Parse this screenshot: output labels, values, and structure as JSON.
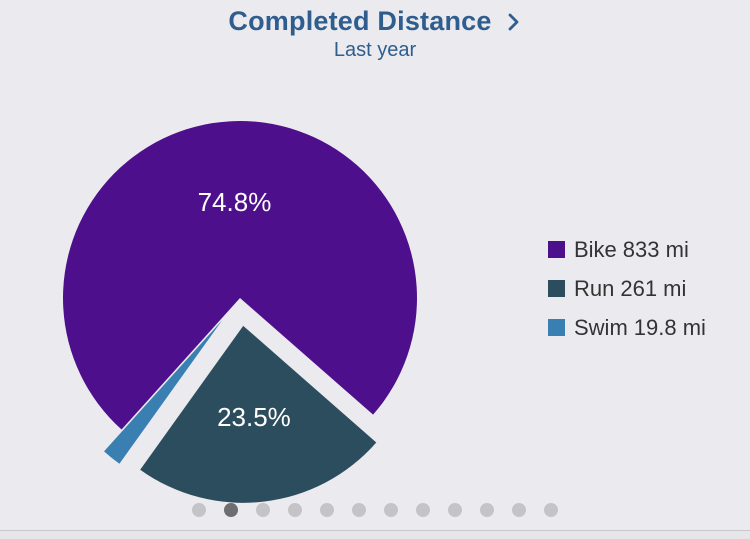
{
  "header": {
    "title": "Completed Distance",
    "subtitle": "Last year"
  },
  "chart_data": {
    "type": "pie",
    "slices": [
      {
        "name": "Bike",
        "value": 833,
        "unit": "mi",
        "percent_label": "74.8%",
        "color": "#4e0f8c",
        "exploded": false
      },
      {
        "name": "Run",
        "value": 261,
        "unit": "mi",
        "percent_label": "23.5%",
        "color": "#2c4d5e",
        "exploded": true
      },
      {
        "name": "Swim",
        "value": 19.8,
        "unit": "mi",
        "percent_label": "",
        "color": "#3a7fb2",
        "exploded": true
      }
    ],
    "legend_position": "right",
    "legend": [
      {
        "name": "Bike",
        "amount": "833 mi",
        "color": "#4e0f8c"
      },
      {
        "name": "Run",
        "amount": "261 mi",
        "color": "#2c4d5e"
      },
      {
        "name": "Swim",
        "amount": "19.8 mi",
        "color": "#3a7fb2"
      }
    ]
  },
  "pager": {
    "count": 12,
    "active_index": 1
  },
  "colors": {
    "title": "#2e5d8e",
    "background": "#ebebef",
    "dot_inactive": "#c4c4c8",
    "dot_active": "#6e6e72"
  }
}
